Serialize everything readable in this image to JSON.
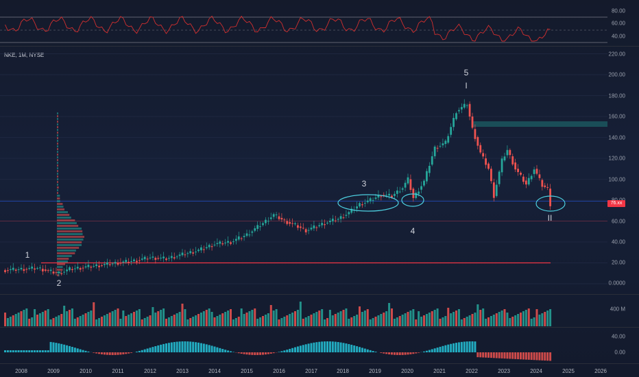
{
  "symbol_legend": "NKE, 1M, NYSE",
  "price_tag": "76.xx",
  "rsi": {
    "ticks": [
      "80.00",
      "60.00",
      "40.00"
    ],
    "overbought": 70,
    "oversold": 30
  },
  "price_axis": {
    "ticks": [
      "220.00",
      "200.00",
      "180.00",
      "160.00",
      "140.00",
      "120.00",
      "100.00",
      "80.00",
      "60.00",
      "40.00",
      "20.00",
      "0.0000"
    ]
  },
  "volume_axis": {
    "ticks": [
      "400 M"
    ]
  },
  "macd_axis": {
    "ticks": [
      "40.00",
      "0.00"
    ]
  },
  "time_axis": {
    "ticks": [
      "2008",
      "2009",
      "2010",
      "2011",
      "2012",
      "2013",
      "2014",
      "2015",
      "2016",
      "2017",
      "2018",
      "2019",
      "2020",
      "2021",
      "2022",
      "2023",
      "2024",
      "2025",
      "2026"
    ]
  },
  "wave_labels": {
    "w1": "1",
    "w2": "2",
    "w3": "3",
    "w4": "4",
    "w5": "5",
    "wI": "I",
    "wII": "II"
  },
  "colors": {
    "up": "#26a69a",
    "down": "#ef5350",
    "rsi_line": "#d32f2f",
    "macd_pos": "#26c6da",
    "macd_neg": "#ef5350",
    "ellipse": "#4dd0e1",
    "hline_red": "#f23645",
    "hline_blue": "#2962ff"
  },
  "chart_data": {
    "type": "candlestick",
    "title": "NKE, 1M, NYSE",
    "ylim": [
      0,
      220
    ],
    "x_range": [
      "2007-07",
      "2026-06"
    ],
    "close_series": [
      [
        "2007-07",
        13
      ],
      [
        "2008-01",
        14
      ],
      [
        "2008-07",
        15
      ],
      [
        "2009-01",
        11
      ],
      [
        "2009-03",
        10
      ],
      [
        "2009-07",
        14
      ],
      [
        "2010-01",
        16
      ],
      [
        "2010-07",
        18
      ],
      [
        "2011-01",
        20
      ],
      [
        "2011-07",
        22
      ],
      [
        "2012-01",
        25
      ],
      [
        "2012-07",
        24
      ],
      [
        "2013-01",
        28
      ],
      [
        "2013-07",
        32
      ],
      [
        "2014-01",
        38
      ],
      [
        "2014-07",
        40
      ],
      [
        "2015-01",
        47
      ],
      [
        "2015-07",
        58
      ],
      [
        "2015-11",
        66
      ],
      [
        "2016-03",
        60
      ],
      [
        "2016-07",
        56
      ],
      [
        "2016-11",
        51
      ],
      [
        "2017-03",
        55
      ],
      [
        "2017-07",
        59
      ],
      [
        "2017-11",
        62
      ],
      [
        "2018-03",
        68
      ],
      [
        "2018-07",
        76
      ],
      [
        "2018-11",
        80
      ],
      [
        "2019-03",
        85
      ],
      [
        "2019-07",
        84
      ],
      [
        "2019-11",
        92
      ],
      [
        "2020-01",
        100
      ],
      [
        "2020-03",
        82
      ],
      [
        "2020-07",
        98
      ],
      [
        "2020-11",
        130
      ],
      [
        "2021-03",
        135
      ],
      [
        "2021-07",
        165
      ],
      [
        "2021-11",
        172
      ],
      [
        "2022-01",
        148
      ],
      [
        "2022-04",
        125
      ],
      [
        "2022-07",
        110
      ],
      [
        "2022-09",
        84
      ],
      [
        "2022-12",
        118
      ],
      [
        "2023-02",
        128
      ],
      [
        "2023-05",
        110
      ],
      [
        "2023-09",
        95
      ],
      [
        "2023-12",
        110
      ],
      [
        "2024-03",
        94
      ],
      [
        "2024-05",
        91
      ],
      [
        "2024-06",
        76
      ]
    ],
    "horizontal_levels": [
      79,
      60,
      20
    ]
  }
}
